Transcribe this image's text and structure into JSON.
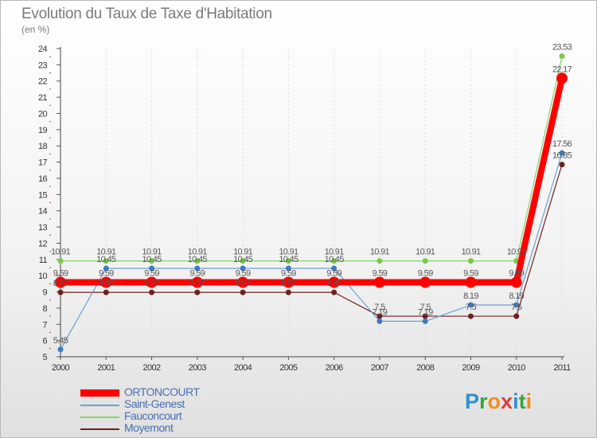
{
  "title": "Evolution du Taux de Taxe d'Habitation",
  "subtitle": "(en %)",
  "logo": {
    "letters": [
      "P",
      "r",
      "o",
      "x",
      "i",
      "t",
      "i"
    ],
    "colors": [
      "#2f8fd0",
      "#3aa43a",
      "#f28c1e",
      "#e23b3b",
      "#2f8fd0",
      "#3aa43a",
      "#f28c1e"
    ]
  },
  "legend": [
    {
      "name": "ORTONCOURT",
      "color": "#ff0000",
      "thick": true
    },
    {
      "name": "Saint-Genest",
      "color": "#6b9fd4",
      "thick": false
    },
    {
      "name": "Fauconcourt",
      "color": "#88d46a",
      "thick": false
    },
    {
      "name": "Moyemont",
      "color": "#6e2020",
      "thick": false
    }
  ],
  "chart_data": {
    "type": "line",
    "title": "Evolution du Taux de Taxe d'Habitation",
    "ylabel": "(en %)",
    "xlabel": "",
    "x": [
      "2000",
      "2001",
      "2002",
      "2003",
      "2004",
      "2005",
      "2006",
      "2007",
      "2008",
      "2009",
      "2010",
      "2011"
    ],
    "ylim": [
      5,
      24
    ],
    "yticks": [
      5,
      6,
      7,
      8,
      9,
      10,
      11,
      12,
      13,
      14,
      15,
      16,
      17,
      18,
      19,
      20,
      21,
      22,
      23,
      24
    ],
    "series": [
      {
        "name": "Moyemont",
        "color": "#6e2020",
        "marker": "#6e2020",
        "width": 1.2,
        "radius": 3.5,
        "values": [
          8.97,
          8.97,
          8.97,
          8.97,
          8.97,
          8.97,
          8.97,
          7.5,
          7.5,
          7.5,
          7.5,
          16.85
        ],
        "labels": [
          "8.97",
          "8.97",
          "8.97",
          "8.97",
          "8.97",
          "8.97",
          "8.97",
          "7.5",
          "7.5",
          "7.5",
          "7.5",
          "16.85"
        ]
      },
      {
        "name": "Fauconcourt",
        "color": "#88d46a",
        "marker": "#79c94c",
        "width": 1.2,
        "radius": 3.5,
        "values": [
          10.91,
          10.91,
          10.91,
          10.91,
          10.91,
          10.91,
          10.91,
          10.91,
          10.91,
          10.91,
          10.91,
          23.53
        ],
        "labels": [
          "10.91",
          "10.91",
          "10.91",
          "10.91",
          "10.91",
          "10.91",
          "10.91",
          "10.91",
          "10.91",
          "10.91",
          "10.91",
          "23.53"
        ]
      },
      {
        "name": "Saint-Genest",
        "color": "#6b9fd4",
        "marker": "#3a7cc4",
        "width": 1.2,
        "radius": 3.5,
        "values": [
          5.45,
          10.45,
          10.45,
          10.45,
          10.45,
          10.45,
          10.45,
          7.19,
          7.19,
          8.19,
          8.19,
          17.56
        ],
        "labels": [
          "5.45",
          "10.45",
          "10.45",
          "10.45",
          "10.45",
          "10.45",
          "10.45",
          "7.19",
          "7.19",
          "8.19",
          "8.19",
          "17.56"
        ]
      },
      {
        "name": "ORTONCOURT",
        "color": "#ff0000",
        "marker": "#ff0000",
        "width": 8,
        "radius": 7,
        "values": [
          9.59,
          9.59,
          9.59,
          9.59,
          9.59,
          9.59,
          9.59,
          9.59,
          9.59,
          9.59,
          9.59,
          22.17
        ],
        "labels": [
          "9.59",
          "9.59",
          "9.59",
          "9.59",
          "9.59",
          "9.59",
          "9.59",
          "9.59",
          "9.59",
          "9.59",
          "9.59",
          "22.17"
        ]
      }
    ]
  }
}
